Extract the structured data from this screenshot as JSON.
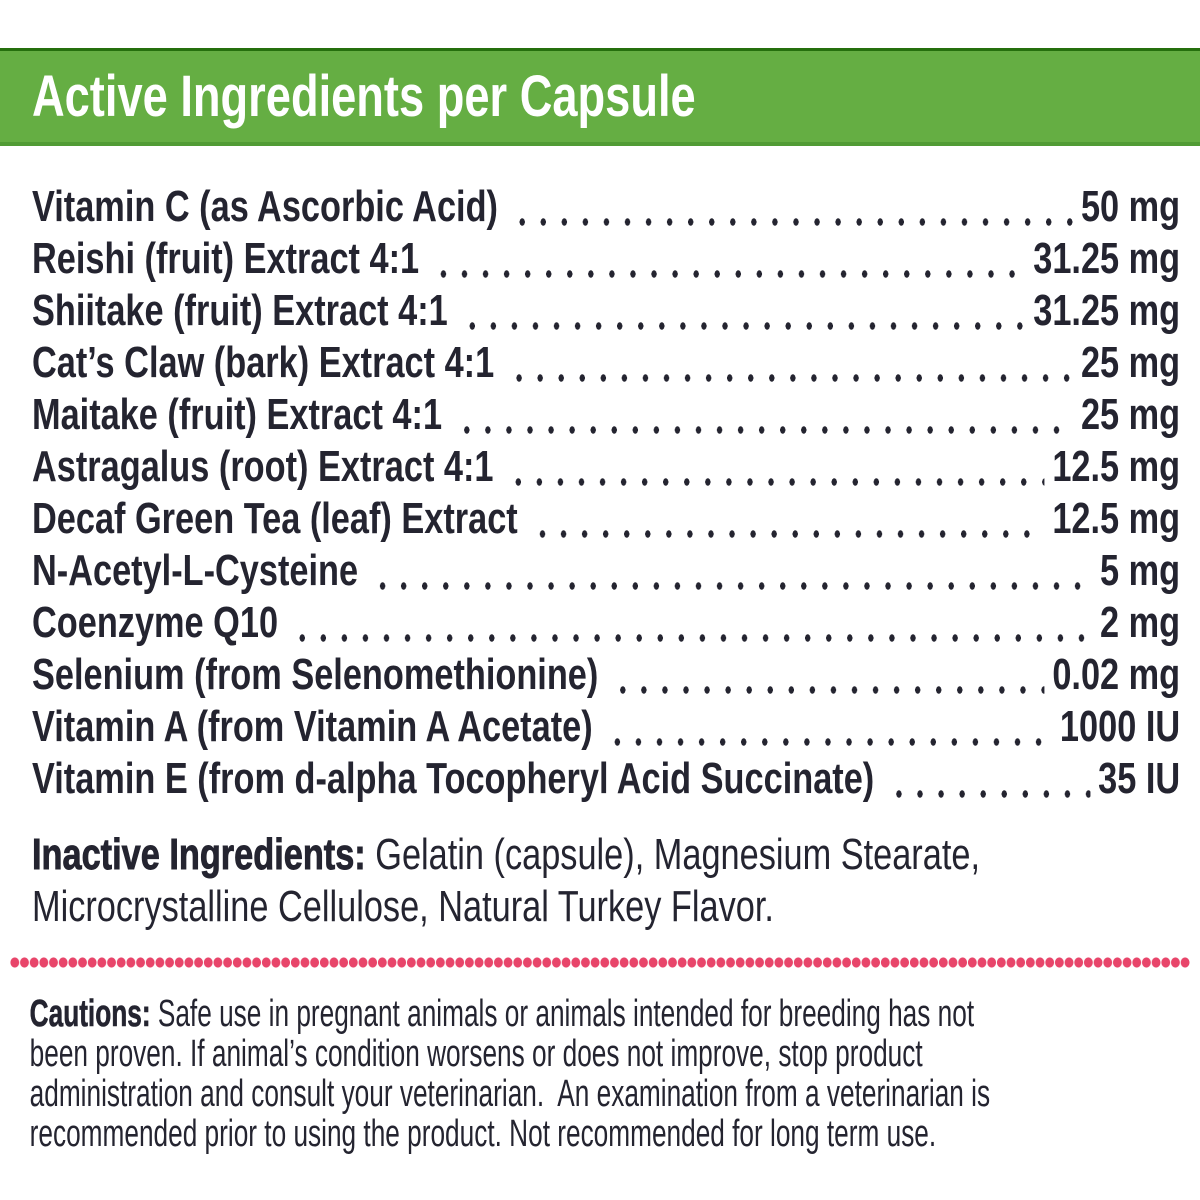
{
  "colors": {
    "paper": "#ffffff",
    "green": "#65ae43",
    "green_edge_top": "#256f0d",
    "green_edge_bottom": "#519b35",
    "header_text": "#ffffff",
    "ink": "#242430",
    "dot_pink": "#e8456a"
  },
  "header": {
    "title": "Active Ingredients per Capsule"
  },
  "ingredients": [
    {
      "name": "Vitamin C (as Ascorbic Acid)",
      "amount": "50 mg"
    },
    {
      "name": "Reishi (fruit) Extract 4:1",
      "amount": "31.25 mg"
    },
    {
      "name": "Shiitake (fruit) Extract 4:1",
      "amount": "31.25 mg"
    },
    {
      "name": "Cat’s Claw (bark) Extract 4:1",
      "amount": "25 mg"
    },
    {
      "name": "Maitake (fruit) Extract 4:1",
      "amount": "25 mg"
    },
    {
      "name": "Astragalus (root) Extract 4:1",
      "amount": "12.5 mg"
    },
    {
      "name": "Decaf Green Tea (leaf) Extract",
      "amount": "12.5 mg"
    },
    {
      "name": "N-Acetyl-L-Cysteine",
      "amount": "5 mg"
    },
    {
      "name": "Coenzyme Q10",
      "amount": "2 mg"
    },
    {
      "name": "Selenium (from Selenomethionine)",
      "amount": "0.02 mg"
    },
    {
      "name": "Vitamin A (from Vitamin A Acetate)",
      "amount": "1000 IU"
    },
    {
      "name": "Vitamin E (from d-alpha Tocopheryl Acid Succinate)",
      "amount": "35 IU"
    }
  ],
  "inactive": {
    "label": "Inactive Ingredients:",
    "line1_rest": " Gelatin (capsule), Magnesium Stearate,",
    "line2": "Microcrystalline Cellulose, Natural Turkey Flavor."
  },
  "cautions": {
    "label": "Cautions:",
    "line1_rest": " Safe use in pregnant animals or animals intended for breeding has not",
    "line2": "been proven. If animal’s condition worsens or does not improve, stop product",
    "line3": "administration and consult your veterinarian.  An examination from a veterinarian is",
    "line4": "recommended prior to using the product. Not recommended for long term use."
  }
}
